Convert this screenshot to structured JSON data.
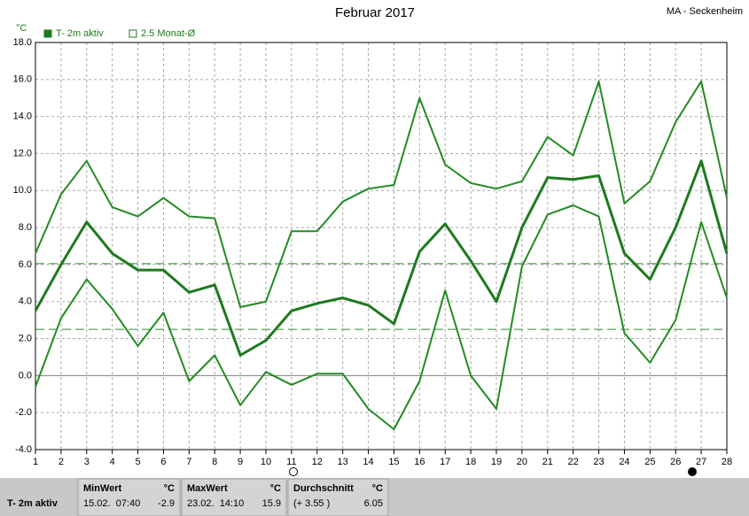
{
  "chart_data": {
    "type": "line",
    "title": "Februar 2017",
    "station": "MA - Seckenheim",
    "y_unit": "°C",
    "legend": [
      "T- 2m aktiv",
      "2.5 Monat-Ø"
    ],
    "x": [
      1,
      2,
      3,
      4,
      5,
      6,
      7,
      8,
      9,
      10,
      11,
      12,
      13,
      14,
      15,
      16,
      17,
      18,
      19,
      20,
      21,
      22,
      23,
      24,
      25,
      26,
      27,
      28
    ],
    "xlim": [
      1,
      28
    ],
    "xticks": [
      1,
      2,
      3,
      4,
      5,
      6,
      7,
      8,
      9,
      10,
      11,
      12,
      13,
      14,
      15,
      16,
      17,
      18,
      19,
      20,
      21,
      22,
      23,
      24,
      25,
      26,
      27,
      28
    ],
    "ylim": [
      -4,
      18
    ],
    "yticks": [
      {
        "value": -4,
        "label": "-4.0"
      },
      {
        "value": -2,
        "label": "-2.0"
      },
      {
        "value": 0,
        "label": "0.0"
      },
      {
        "value": 2,
        "label": "2.0"
      },
      {
        "value": 4,
        "label": "4.0"
      },
      {
        "value": 6,
        "label": "6.0"
      },
      {
        "value": 8,
        "label": "8.0"
      },
      {
        "value": 10,
        "label": "10.0"
      },
      {
        "value": 12,
        "label": "12.0"
      },
      {
        "value": 14,
        "label": "14.0"
      },
      {
        "value": 16,
        "label": "16.0"
      },
      {
        "value": 18,
        "label": "18.0"
      }
    ],
    "grid": true,
    "hlines": [
      6.05,
      2.5
    ],
    "series": [
      {
        "color": "#238b23",
        "values": [
          6.6,
          9.8,
          11.6,
          9.1,
          8.6,
          9.6,
          8.6,
          8.5,
          3.7,
          4.0,
          7.8,
          7.8,
          9.4,
          10.1,
          10.3,
          15.0,
          11.4,
          10.4,
          10.1,
          10.5,
          12.9,
          11.9,
          15.9,
          9.3,
          10.5,
          13.7,
          15.9,
          9.6
        ]
      },
      {
        "color": "#1e7a1e",
        "values": [
          3.5,
          6.0,
          8.3,
          6.6,
          5.7,
          5.7,
          4.5,
          4.9,
          1.1,
          1.9,
          3.5,
          3.9,
          4.2,
          3.8,
          2.8,
          6.7,
          8.2,
          6.2,
          4.0,
          8.0,
          10.7,
          10.6,
          10.8,
          6.6,
          5.2,
          8.0,
          11.6,
          6.6
        ]
      },
      {
        "color": "#238b23",
        "values": [
          -0.6,
          3.1,
          5.2,
          3.6,
          1.6,
          3.4,
          -0.3,
          1.1,
          -1.6,
          0.2,
          -0.5,
          0.1,
          0.1,
          -1.8,
          -2.9,
          -0.3,
          4.6,
          0.0,
          -1.8,
          5.9,
          8.7,
          9.2,
          8.6,
          2.3,
          0.7,
          3.0,
          8.3,
          4.2
        ]
      }
    ]
  },
  "summary": {
    "label": "T- 2m aktiv",
    "columns": [
      {
        "title": "MinWert",
        "unit": "°C",
        "when": "15.02.  07:40",
        "value": "-2.9"
      },
      {
        "title": "MaxWert",
        "unit": "°C",
        "when": "23.02.  14:10",
        "value": "15.9"
      },
      {
        "title": "Durchschnitt",
        "unit": "°C",
        "when": "(+ 3.55 )",
        "value": "6.05"
      }
    ]
  }
}
